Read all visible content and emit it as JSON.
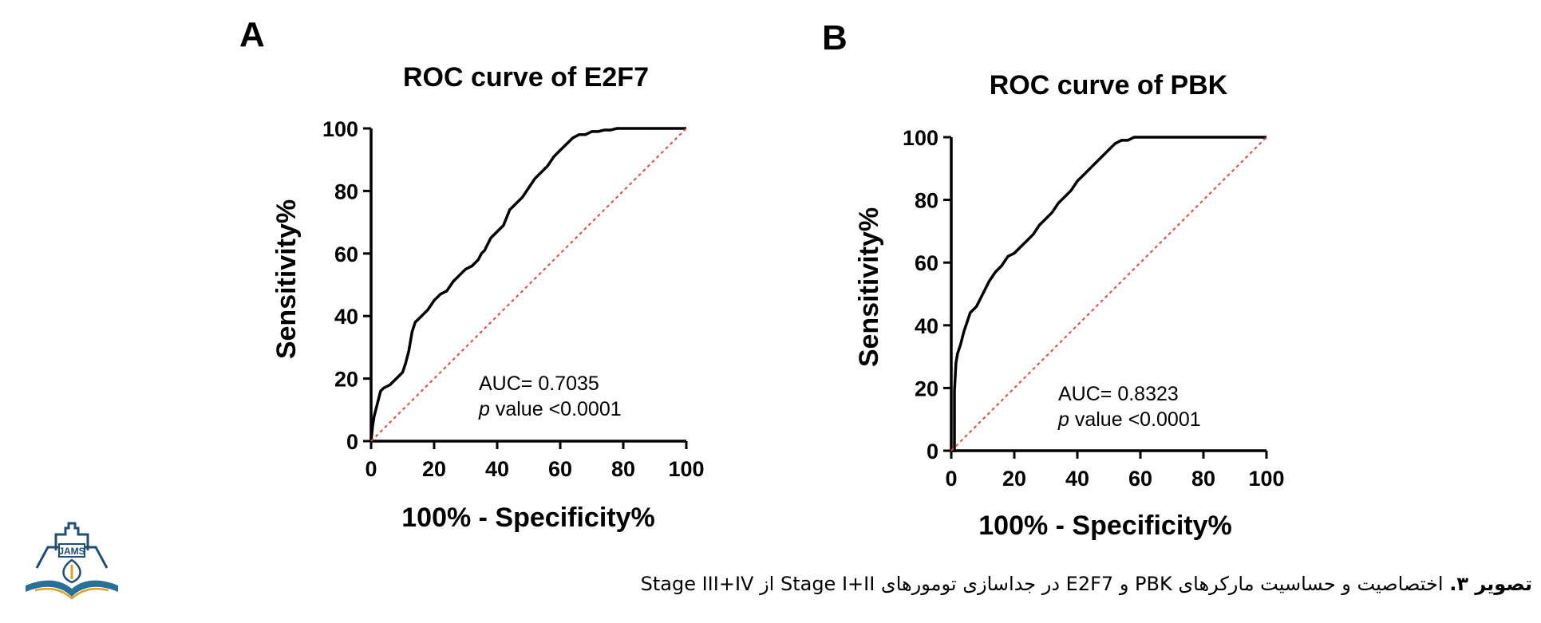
{
  "caption": {
    "label": "تصویر ۳.",
    "text": "اختصاصیت و حساسیت مارکرهای PBK و E2F7 در جداسازی تومورهای Stage I+II از Stage III+IV"
  },
  "logo": {
    "text": "JAMS",
    "icon": "jams-logo-icon"
  },
  "colors": {
    "curve": "#000000",
    "reference": "#e8473c"
  },
  "chart_data": [
    {
      "panel": "A",
      "type": "line",
      "title": "ROC curve of E2F7",
      "xlabel": "100% - Specificity%",
      "ylabel": "Sensitivity%",
      "xlim": [
        0,
        100
      ],
      "ylim": [
        0,
        100
      ],
      "xticks": [
        0,
        20,
        40,
        60,
        80,
        100
      ],
      "yticks": [
        0,
        20,
        40,
        60,
        80,
        100
      ],
      "grid": false,
      "annotation": {
        "auc": "AUC= 0.7035",
        "p_italic": "p",
        "p_rest": " value <0.0001"
      },
      "series": [
        {
          "x": [
            0,
            0.5,
            1,
            2,
            3,
            4,
            6,
            8,
            10,
            11,
            12,
            13,
            14,
            16,
            18,
            20,
            22,
            24,
            26,
            28,
            30,
            32,
            34,
            35,
            36,
            38,
            40,
            42,
            44,
            46,
            48,
            50,
            52,
            54,
            56,
            58,
            60,
            62,
            64,
            66,
            68,
            70,
            72,
            74,
            76,
            78,
            80,
            90,
            100
          ],
          "y": [
            0,
            5,
            8,
            12,
            16,
            17,
            18,
            20,
            22,
            25,
            29,
            35,
            38,
            40,
            42,
            45,
            47,
            48,
            51,
            53,
            55,
            56,
            58,
            60,
            61,
            65,
            67,
            69,
            74,
            76,
            78,
            81,
            84,
            86,
            88,
            91,
            93,
            95,
            97,
            98,
            98,
            99,
            99,
            99.5,
            99.5,
            100,
            100,
            100,
            100
          ]
        },
        {
          "style": "reference",
          "x": [
            0,
            100
          ],
          "y": [
            0,
            100
          ]
        }
      ]
    },
    {
      "panel": "B",
      "type": "line",
      "title": "ROC curve of PBK",
      "xlabel": "100% - Specificity%",
      "ylabel": "Sensitivity%",
      "xlim": [
        0,
        100
      ],
      "ylim": [
        0,
        100
      ],
      "xticks": [
        0,
        20,
        40,
        60,
        80,
        100
      ],
      "yticks": [
        0,
        20,
        40,
        60,
        80,
        100
      ],
      "grid": false,
      "annotation": {
        "auc": "AUC= 0.8323",
        "p_italic": "p",
        "p_rest": " value <0.0001"
      },
      "series": [
        {
          "x": [
            0,
            1,
            1,
            1.5,
            2,
            3,
            4,
            5,
            6,
            8,
            10,
            12,
            14,
            16,
            18,
            20,
            22,
            24,
            26,
            28,
            30,
            32,
            34,
            36,
            38,
            40,
            42,
            44,
            46,
            48,
            50,
            52,
            54,
            56,
            58,
            60,
            70,
            80,
            100
          ],
          "y": [
            0,
            0,
            19,
            28,
            31,
            34,
            38,
            41,
            44,
            46,
            50,
            54,
            57,
            59,
            62,
            63,
            65,
            67,
            69,
            72,
            74,
            76,
            79,
            81,
            83,
            86,
            88,
            90,
            92,
            94,
            96,
            98,
            99,
            99,
            100,
            100,
            100,
            100,
            100
          ]
        },
        {
          "style": "reference",
          "x": [
            0,
            100
          ],
          "y": [
            0,
            100
          ]
        }
      ]
    }
  ]
}
